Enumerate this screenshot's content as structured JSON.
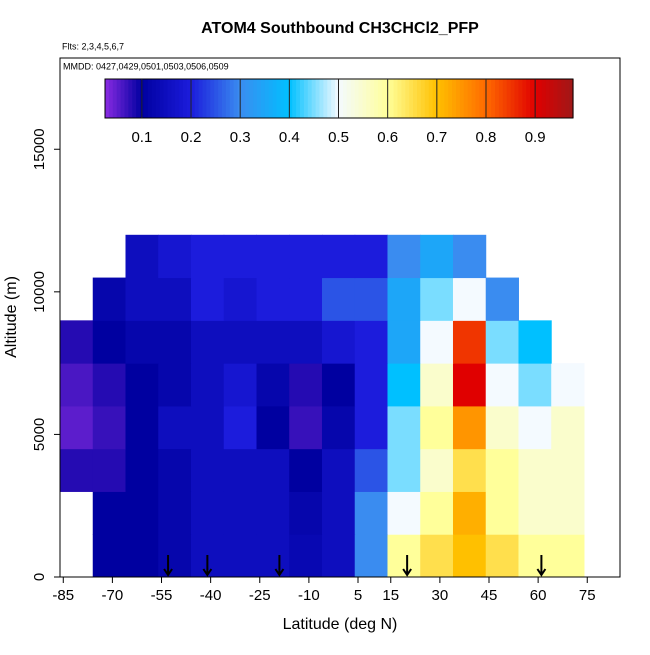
{
  "chart_data": {
    "type": "heatmap",
    "title": "ATOM4 Southbound CH3CHCl2_PFP",
    "subtitle": "Flts: 2,3,4,5,6,7",
    "annotation": "MMDD: 0427,0429,0501,0503,0506,0509",
    "x_label": "Latitude (deg N)",
    "y_label": "Altitude (m)",
    "xlim": [
      -86,
      85
    ],
    "ylim": [
      0,
      18200
    ],
    "xticks": [
      -85,
      -70,
      -55,
      -40,
      -25,
      -10,
      5,
      15,
      30,
      45,
      60,
      75
    ],
    "yticks": [
      0,
      5000,
      10000,
      15000
    ],
    "x_edges": [
      -86,
      -76,
      -66,
      -56,
      -46,
      -36,
      -26,
      -16,
      -6,
      4,
      14,
      24,
      34,
      44,
      54,
      64,
      74
    ],
    "y_edges": [
      0,
      1500,
      3000,
      4500,
      6000,
      7500,
      9000,
      10500,
      12000
    ],
    "values": [
      [
        null,
        0.1,
        0.1,
        0.12,
        0.15,
        0.15,
        0.15,
        0.13,
        0.15,
        0.3,
        0.6,
        0.65,
        0.7,
        0.65,
        0.6,
        0.6
      ],
      [
        null,
        0.1,
        0.1,
        0.12,
        0.15,
        0.15,
        0.15,
        0.12,
        0.15,
        0.3,
        0.5,
        0.6,
        0.72,
        0.6,
        0.55,
        0.55
      ],
      [
        0.08,
        0.08,
        0.1,
        0.12,
        0.15,
        0.15,
        0.15,
        0.1,
        0.15,
        0.25,
        0.45,
        0.55,
        0.65,
        0.6,
        0.55,
        0.55
      ],
      [
        0.05,
        0.07,
        0.1,
        0.15,
        0.15,
        0.2,
        0.1,
        0.07,
        0.12,
        0.2,
        0.45,
        0.6,
        0.75,
        0.55,
        0.5,
        0.55
      ],
      [
        0.06,
        0.08,
        0.1,
        0.12,
        0.15,
        0.18,
        0.12,
        0.08,
        0.1,
        0.2,
        0.4,
        0.55,
        0.9,
        0.5,
        0.45,
        0.5
      ],
      [
        0.08,
        0.1,
        0.12,
        0.12,
        0.15,
        0.15,
        0.15,
        0.15,
        0.18,
        0.2,
        0.35,
        0.5,
        0.85,
        0.45,
        0.4,
        null
      ],
      [
        null,
        0.12,
        0.15,
        0.15,
        0.2,
        0.18,
        0.2,
        0.2,
        0.25,
        0.25,
        0.35,
        0.45,
        0.5,
        0.3,
        null,
        null
      ],
      [
        null,
        null,
        0.15,
        0.18,
        0.2,
        0.2,
        0.2,
        0.2,
        0.2,
        0.2,
        0.3,
        0.35,
        0.3,
        null,
        null,
        null
      ]
    ],
    "arrows": [
      -53,
      -41,
      -19,
      20,
      61
    ],
    "colorbar": {
      "lim": [
        0.025,
        0.977
      ],
      "ticks": [
        0.1,
        0.2,
        0.3,
        0.4,
        0.5,
        0.6,
        0.7,
        0.8,
        0.9
      ]
    },
    "colormap": {
      "stops": [
        0.025,
        0.1,
        0.2,
        0.3,
        0.4,
        0.5,
        0.6,
        0.7,
        0.8,
        0.9,
        0.977
      ],
      "colors": [
        "#8a2be2",
        "#0000a0",
        "#1c1cdc",
        "#3a8cf0",
        "#00c0ff",
        "#f4faff",
        "#ffff9a",
        "#ffc000",
        "#ff6a00",
        "#e00000",
        "#a01818"
      ]
    }
  }
}
